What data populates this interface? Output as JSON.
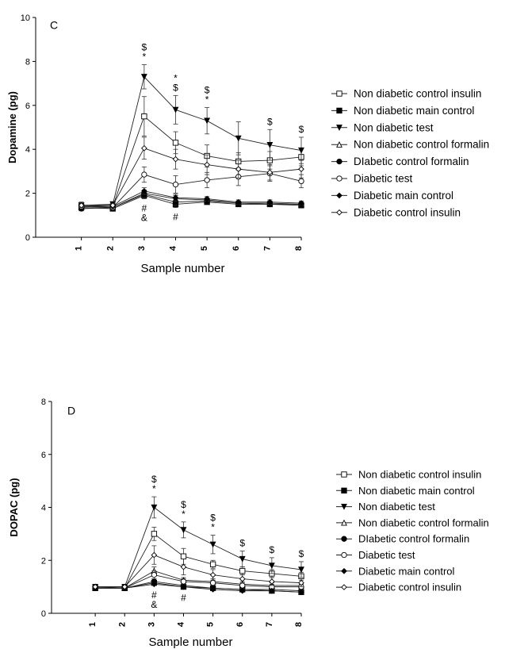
{
  "chart_data": [
    {
      "type": "line",
      "panel_label": "C",
      "xlabel": "Sample number",
      "ylabel": "Dopamine (pg)",
      "x": [
        1,
        2,
        3,
        4,
        5,
        6,
        7,
        8
      ],
      "xlim": [
        0,
        8
      ],
      "ylim": [
        0,
        10
      ],
      "yticks": [
        0,
        2,
        4,
        6,
        8,
        10
      ],
      "grid": false,
      "legend": "right",
      "series": [
        {
          "name": "Non diabetic control insulin",
          "marker": "square-open",
          "values": [
            1.4,
            1.4,
            5.5,
            4.3,
            3.7,
            3.45,
            3.5,
            3.65
          ],
          "errors": [
            0.15,
            0.1,
            0.9,
            0.5,
            0.5,
            0.4,
            0.4,
            0.4
          ]
        },
        {
          "name": "Non diabetic main control",
          "marker": "square-filled",
          "values": [
            1.35,
            1.3,
            1.9,
            1.5,
            1.6,
            1.5,
            1.5,
            1.45
          ],
          "errors": [
            0.1,
            0.1,
            0.15,
            0.15,
            0.1,
            0.1,
            0.1,
            0.1
          ]
        },
        {
          "name": "Non diabetic test",
          "marker": "triangle-down-filled",
          "values": [
            1.45,
            1.5,
            7.3,
            5.8,
            5.3,
            4.5,
            4.2,
            3.95
          ],
          "errors": [
            0.15,
            0.1,
            0.55,
            0.65,
            0.6,
            0.75,
            0.7,
            0.6
          ]
        },
        {
          "name": "Non diabetic control formalin",
          "marker": "triangle-up-open",
          "values": [
            1.4,
            1.35,
            2.0,
            1.75,
            1.7,
            1.55,
            1.55,
            1.5
          ],
          "errors": [
            0.1,
            0.1,
            0.15,
            0.15,
            0.1,
            0.1,
            0.1,
            0.1
          ]
        },
        {
          "name": "DIabetic control formalin",
          "marker": "circle-filled",
          "values": [
            1.3,
            1.35,
            1.95,
            1.6,
            1.65,
            1.55,
            1.5,
            1.5
          ],
          "errors": [
            0.1,
            0.1,
            0.15,
            0.15,
            0.1,
            0.1,
            0.1,
            0.1
          ]
        },
        {
          "name": "Diabetic test",
          "marker": "circle-open",
          "values": [
            1.4,
            1.35,
            2.85,
            2.4,
            2.6,
            2.75,
            2.9,
            2.55
          ],
          "errors": [
            0.1,
            0.1,
            0.35,
            0.4,
            0.35,
            0.4,
            0.35,
            0.3
          ]
        },
        {
          "name": "Diabetic main control",
          "marker": "diamond-filled",
          "values": [
            1.45,
            1.4,
            2.1,
            1.8,
            1.75,
            1.6,
            1.6,
            1.55
          ],
          "errors": [
            0.1,
            0.1,
            0.15,
            0.15,
            0.1,
            0.1,
            0.1,
            0.1
          ]
        },
        {
          "name": "Diabetic control insulin",
          "marker": "diamond-open",
          "values": [
            1.45,
            1.45,
            4.05,
            3.55,
            3.3,
            3.1,
            2.95,
            3.1
          ],
          "errors": [
            0.1,
            0.1,
            0.5,
            0.45,
            0.45,
            0.4,
            0.35,
            0.4
          ]
        }
      ],
      "annotations": [
        {
          "x": 3,
          "texts": [
            "$",
            "*"
          ],
          "anchor": "above"
        },
        {
          "x": 4,
          "texts": [
            "*",
            "$"
          ],
          "anchor": "above"
        },
        {
          "x": 5,
          "texts": [
            "$",
            "*"
          ],
          "anchor": "above"
        },
        {
          "x": 7,
          "texts": [
            "$"
          ],
          "anchor": "above"
        },
        {
          "x": 8,
          "texts": [
            "$"
          ],
          "anchor": "above"
        },
        {
          "x": 3,
          "texts": [
            "#",
            "&"
          ],
          "anchor": "below"
        },
        {
          "x": 4,
          "texts": [
            "#"
          ],
          "anchor": "below"
        }
      ]
    },
    {
      "type": "line",
      "panel_label": "D",
      "xlabel": "Sample number",
      "ylabel": "DOPAC (pg)",
      "x": [
        1,
        2,
        3,
        4,
        5,
        6,
        7,
        8
      ],
      "xlim": [
        0,
        8
      ],
      "ylim": [
        0,
        8
      ],
      "yticks": [
        0,
        2,
        4,
        6,
        8
      ],
      "grid": false,
      "legend": "right",
      "series": [
        {
          "name": "Non diabetic control insulin",
          "marker": "square-open",
          "values": [
            0.95,
            0.95,
            3.0,
            2.15,
            1.85,
            1.6,
            1.5,
            1.4
          ],
          "errors": [
            0.05,
            0.05,
            0.25,
            0.3,
            0.15,
            0.15,
            0.15,
            0.15
          ]
        },
        {
          "name": "Non diabetic main control",
          "marker": "square-filled",
          "values": [
            0.95,
            0.95,
            1.15,
            1.0,
            0.95,
            0.9,
            0.85,
            0.8
          ],
          "errors": [
            0.05,
            0.05,
            0.1,
            0.05,
            0.05,
            0.05,
            0.05,
            0.05
          ]
        },
        {
          "name": "Non diabetic test",
          "marker": "triangle-down-filled",
          "values": [
            1.0,
            1.0,
            4.0,
            3.15,
            2.6,
            2.05,
            1.8,
            1.65
          ],
          "errors": [
            0.05,
            0.05,
            0.4,
            0.3,
            0.35,
            0.3,
            0.3,
            0.3
          ]
        },
        {
          "name": "Non diabetic control formalin",
          "marker": "triangle-up-open",
          "values": [
            1.0,
            0.95,
            1.6,
            1.25,
            1.2,
            1.1,
            1.05,
            1.05
          ],
          "errors": [
            0.05,
            0.05,
            0.15,
            0.1,
            0.1,
            0.1,
            0.1,
            0.1
          ]
        },
        {
          "name": "DIabetic control formalin",
          "marker": "circle-filled",
          "values": [
            0.95,
            0.95,
            1.2,
            1.05,
            0.95,
            0.9,
            0.9,
            0.85
          ],
          "errors": [
            0.05,
            0.05,
            0.1,
            0.05,
            0.05,
            0.05,
            0.05,
            0.05
          ]
        },
        {
          "name": "Diabetic test",
          "marker": "circle-open",
          "values": [
            1.0,
            0.95,
            1.45,
            1.2,
            1.15,
            1.05,
            1.0,
            1.0
          ],
          "errors": [
            0.05,
            0.05,
            0.15,
            0.1,
            0.1,
            0.1,
            0.1,
            0.1
          ]
        },
        {
          "name": "Diabetic main control",
          "marker": "diamond-filled",
          "values": [
            0.95,
            0.95,
            1.1,
            1.0,
            0.9,
            0.85,
            0.85,
            0.8
          ],
          "errors": [
            0.05,
            0.05,
            0.05,
            0.05,
            0.05,
            0.05,
            0.05,
            0.05
          ]
        },
        {
          "name": "Diabetic control insulin",
          "marker": "diamond-open",
          "values": [
            1.0,
            1.0,
            2.2,
            1.75,
            1.45,
            1.3,
            1.2,
            1.15
          ],
          "errors": [
            0.05,
            0.05,
            0.35,
            0.3,
            0.2,
            0.15,
            0.15,
            0.15
          ]
        }
      ],
      "annotations": [
        {
          "x": 3,
          "texts": [
            "$",
            "*"
          ],
          "anchor": "above"
        },
        {
          "x": 4,
          "texts": [
            "$",
            "*"
          ],
          "anchor": "above"
        },
        {
          "x": 5,
          "texts": [
            "$",
            "*"
          ],
          "anchor": "above"
        },
        {
          "x": 6,
          "texts": [
            "$"
          ],
          "anchor": "above"
        },
        {
          "x": 7,
          "texts": [
            "$"
          ],
          "anchor": "above"
        },
        {
          "x": 8,
          "texts": [
            "$"
          ],
          "anchor": "above"
        },
        {
          "x": 3,
          "texts": [
            "#",
            "&"
          ],
          "anchor": "below"
        },
        {
          "x": 4,
          "texts": [
            "#"
          ],
          "anchor": "below"
        }
      ]
    }
  ]
}
